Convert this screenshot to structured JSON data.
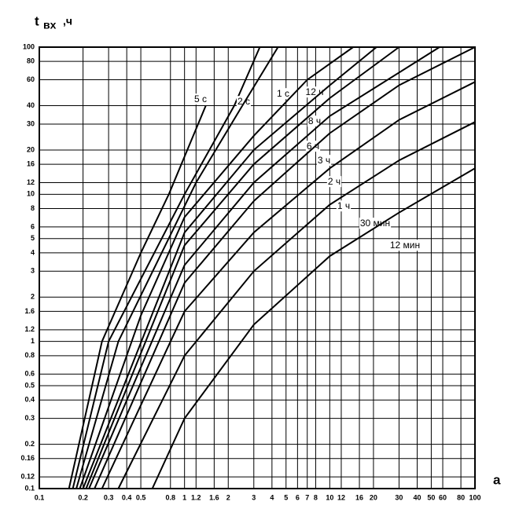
{
  "chart_data": {
    "type": "line",
    "y_label": "t",
    "y_label_sub": "вх",
    "y_label_unit": ",ч",
    "x_label": "a",
    "log_x": true,
    "log_y": true,
    "grid": true,
    "xlim": [
      0.1,
      100
    ],
    "ylim": [
      0.1,
      100
    ],
    "xticks": [
      0.1,
      0.2,
      0.3,
      0.4,
      0.5,
      0.8,
      1,
      1.2,
      1.6,
      2,
      3,
      4,
      5,
      6,
      7,
      8,
      10,
      12,
      16,
      20,
      30,
      40,
      50,
      60,
      80,
      100
    ],
    "yticks": [
      0.1,
      0.12,
      0.16,
      0.2,
      0.3,
      0.4,
      0.5,
      0.6,
      0.8,
      1,
      1.2,
      1.6,
      2,
      3,
      4,
      5,
      6,
      8,
      10,
      12,
      16,
      20,
      30,
      40,
      60,
      80,
      100
    ],
    "series": [
      {
        "name": "5 с",
        "color": "#000000",
        "x": [
          0.16,
          0.27,
          0.5,
          0.78,
          1.4
        ],
        "values": [
          0.1,
          1,
          4,
          10,
          40
        ]
      },
      {
        "name": "2 с",
        "color": "#000000",
        "x": [
          0.17,
          0.3,
          1,
          2.2,
          3.3
        ],
        "values": [
          0.1,
          1,
          10,
          40,
          100
        ]
      },
      {
        "name": "1 с",
        "color": "#000000",
        "x": [
          0.18,
          0.35,
          1.2,
          2.5,
          4.4
        ],
        "values": [
          0.1,
          1,
          12,
          40,
          100
        ]
      },
      {
        "name": "12 ч",
        "color": "#000000",
        "x": [
          0.19,
          0.5,
          1,
          3,
          7,
          14.5
        ],
        "values": [
          0.1,
          1.5,
          7,
          25,
          60,
          100
        ]
      },
      {
        "name": "8 ч",
        "color": "#000000",
        "x": [
          0.2,
          1,
          3,
          10,
          21
        ],
        "values": [
          0.1,
          5.5,
          20,
          55,
          100
        ]
      },
      {
        "name": "6 ч",
        "color": "#000000",
        "x": [
          0.21,
          1,
          3,
          10,
          30
        ],
        "values": [
          0.1,
          4.5,
          16,
          45,
          100
        ]
      },
      {
        "name": "3 ч",
        "color": "#000000",
        "x": [
          0.22,
          1,
          3,
          10,
          57
        ],
        "values": [
          0.1,
          3.3,
          12,
          34,
          100
        ]
      },
      {
        "name": "2 ч",
        "color": "#000000",
        "x": [
          0.24,
          1,
          3,
          10,
          30,
          100
        ],
        "values": [
          0.1,
          2.5,
          9,
          26,
          55,
          100
        ]
      },
      {
        "name": "1 ч",
        "color": "#000000",
        "x": [
          0.27,
          1,
          3,
          10,
          30,
          100
        ],
        "values": [
          0.1,
          1.6,
          5.5,
          15,
          32,
          58
        ]
      },
      {
        "name": "30 мин",
        "color": "#000000",
        "x": [
          0.35,
          1,
          3,
          10,
          30,
          100
        ],
        "values": [
          0.1,
          0.8,
          3,
          8.5,
          17,
          31
        ]
      },
      {
        "name": "12 мин",
        "color": "#000000",
        "x": [
          0.6,
          1,
          3,
          10,
          30,
          100
        ],
        "values": [
          0.1,
          0.3,
          1.3,
          3.8,
          7.5,
          15
        ]
      }
    ]
  }
}
